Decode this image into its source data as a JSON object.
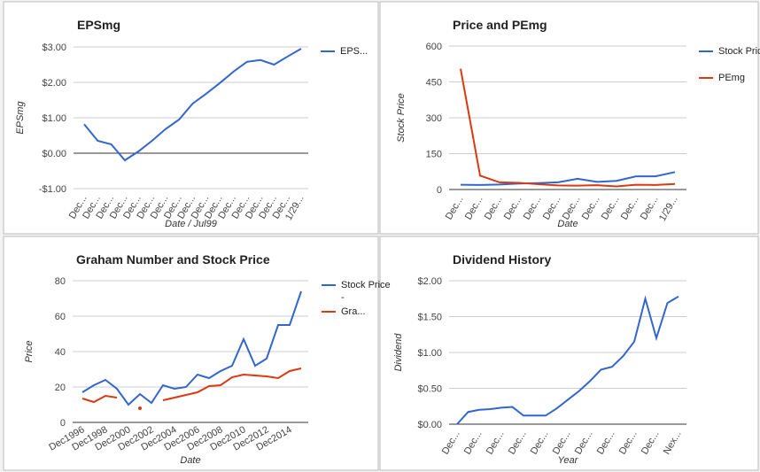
{
  "chart_data": [
    {
      "type": "line",
      "title": "EPSmg",
      "y_label": "EPSmg",
      "x_label": "Date / Jul99",
      "categories": [
        "Dec...",
        "Dec...",
        "Dec...",
        "Dec...",
        "Dec...",
        "Dec...",
        "Dec...",
        "Dec...",
        "Dec...",
        "Dec...",
        "Dec...",
        "Dec...",
        "Dec...",
        "Dec...",
        "Dec...",
        "Dec...",
        "1/29..."
      ],
      "series": [
        {
          "name": "EPS...",
          "color": "#3366cc",
          "values": [
            0.82,
            0.35,
            0.25,
            -0.2,
            0.05,
            0.35,
            0.68,
            0.95,
            1.4,
            1.68,
            1.98,
            2.3,
            2.58,
            2.63,
            2.5,
            2.73,
            2.95
          ]
        }
      ],
      "ylim": [
        -1,
        3
      ],
      "yticks": [
        {
          "value": 3,
          "label": "$3.00"
        },
        {
          "value": 2,
          "label": "$2.00"
        },
        {
          "value": 1,
          "label": "$1.00"
        },
        {
          "value": 0,
          "label": "$0.00"
        },
        {
          "value": -1,
          "label": "-$1.00"
        }
      ],
      "grid": true,
      "legend": "right"
    },
    {
      "type": "line",
      "title": "Price and PEmg",
      "y_label": "Stock Price",
      "x_label": "Date",
      "categories": [
        "Dec...",
        "Dec...",
        "Dec...",
        "Dec...",
        "Dec...",
        "Dec...",
        "Dec...",
        "Dec...",
        "Dec...",
        "Dec...",
        "Dec...",
        "1/29..."
      ],
      "series": [
        {
          "name": "Stock Price",
          "color": "#3366cc",
          "values": [
            20,
            19,
            21,
            25,
            27,
            30,
            45,
            32,
            36,
            55,
            55,
            73
          ]
        },
        {
          "name": "PEmg",
          "color": "#dc3912",
          "values": [
            505,
            58,
            30,
            28,
            22,
            17,
            16,
            18,
            13,
            20,
            19,
            23
          ]
        }
      ],
      "ylim": [
        0,
        600
      ],
      "yticks": [
        600,
        450,
        300,
        150,
        0
      ],
      "grid": true,
      "legend": "right"
    },
    {
      "type": "line",
      "title": "Graham Number and Stock Price",
      "y_label": "Price",
      "x_label": "Date",
      "categories": [
        "Dec1996",
        null,
        "Dec1998",
        null,
        "Dec2000",
        null,
        "Dec2002",
        null,
        "Dec2004",
        null,
        "Dec2006",
        null,
        "Dec2008",
        null,
        "Dec2010",
        null,
        "Dec2012",
        null,
        "Dec2014",
        null
      ],
      "series": [
        {
          "name": "Stock Price -",
          "color": "#3366cc",
          "values": [
            17,
            21,
            24,
            19,
            10,
            16,
            11,
            21,
            19,
            20,
            27,
            25,
            29,
            32,
            47,
            32,
            36,
            55,
            55,
            74
          ]
        },
        {
          "name": "Gra...",
          "color": "#dc3912",
          "values": [
            13.5,
            11.5,
            15,
            14,
            null,
            8,
            null,
            12.5,
            14,
            15.5,
            17,
            20.5,
            21,
            25.5,
            27,
            26.5,
            26,
            25,
            29,
            30.5
          ]
        }
      ],
      "ylim": [
        0,
        80
      ],
      "yticks": [
        80,
        60,
        40,
        20,
        0
      ],
      "grid": true,
      "legend": "right"
    },
    {
      "type": "line",
      "title": "Dividend History",
      "y_label": "Dividend",
      "x_label": "Year",
      "categories": [
        "Dec...",
        null,
        "Dec...",
        null,
        "Dec...",
        null,
        "Dec...",
        null,
        "Dec...",
        null,
        "Dec...",
        null,
        "Dec...",
        null,
        "Dec...",
        null,
        "Dec...",
        null,
        "Dec...",
        null,
        "Nex..."
      ],
      "series": [
        {
          "color": "#3366cc",
          "values": [
            0,
            0.17,
            0.2,
            0.21,
            0.23,
            0.24,
            0.12,
            0.12,
            0.12,
            0.22,
            0.34,
            0.46,
            0.6,
            0.76,
            0.8,
            0.95,
            1.15,
            1.75,
            1.2,
            1.69,
            1.78
          ]
        }
      ],
      "ylim": [
        0,
        2
      ],
      "yticks": [
        {
          "value": 2,
          "label": "$2.00"
        },
        {
          "value": 1.5,
          "label": "$1.50"
        },
        {
          "value": 1,
          "label": "$1.00"
        },
        {
          "value": 0.5,
          "label": "$0.50"
        },
        {
          "value": 0,
          "label": "$0.00"
        }
      ],
      "grid": true
    }
  ]
}
